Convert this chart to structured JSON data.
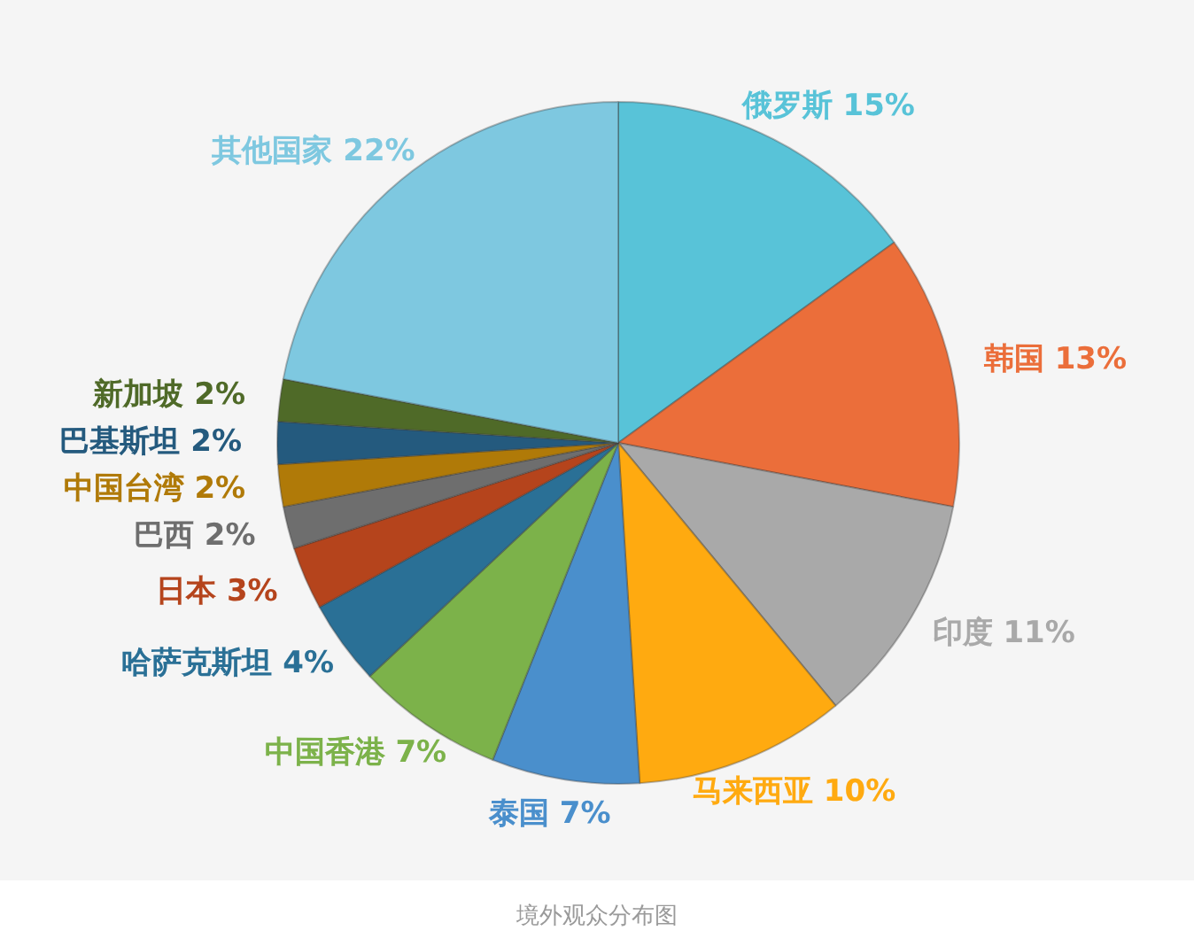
{
  "chart_data": {
    "type": "pie",
    "categories": [
      "俄罗斯",
      "韩国",
      "印度",
      "马来西亚",
      "泰国",
      "中国香港",
      "哈萨克斯坦",
      "日本",
      "巴西",
      "中国台湾",
      "巴基斯坦",
      "新加坡",
      "其他国家"
    ],
    "values": [
      15,
      13,
      11,
      10,
      7,
      7,
      4,
      3,
      2,
      2,
      2,
      2,
      22
    ],
    "value_labels": [
      "15%",
      "13%",
      "11%",
      "10%",
      "7%",
      "7%",
      "4%",
      "3%",
      "2%",
      "2%",
      "2%",
      "2%",
      "22%"
    ],
    "colors": [
      "#58c3d8",
      "#eb6e3a",
      "#a9a9a9",
      "#ffaa10",
      "#4a8fcc",
      "#7cb24a",
      "#2a7096",
      "#b5441c",
      "#6e6e6e",
      "#b07a08",
      "#245a7e",
      "#4f6a28",
      "#7ec8e0"
    ],
    "annotations": [
      "境外观众分布图"
    ]
  }
}
